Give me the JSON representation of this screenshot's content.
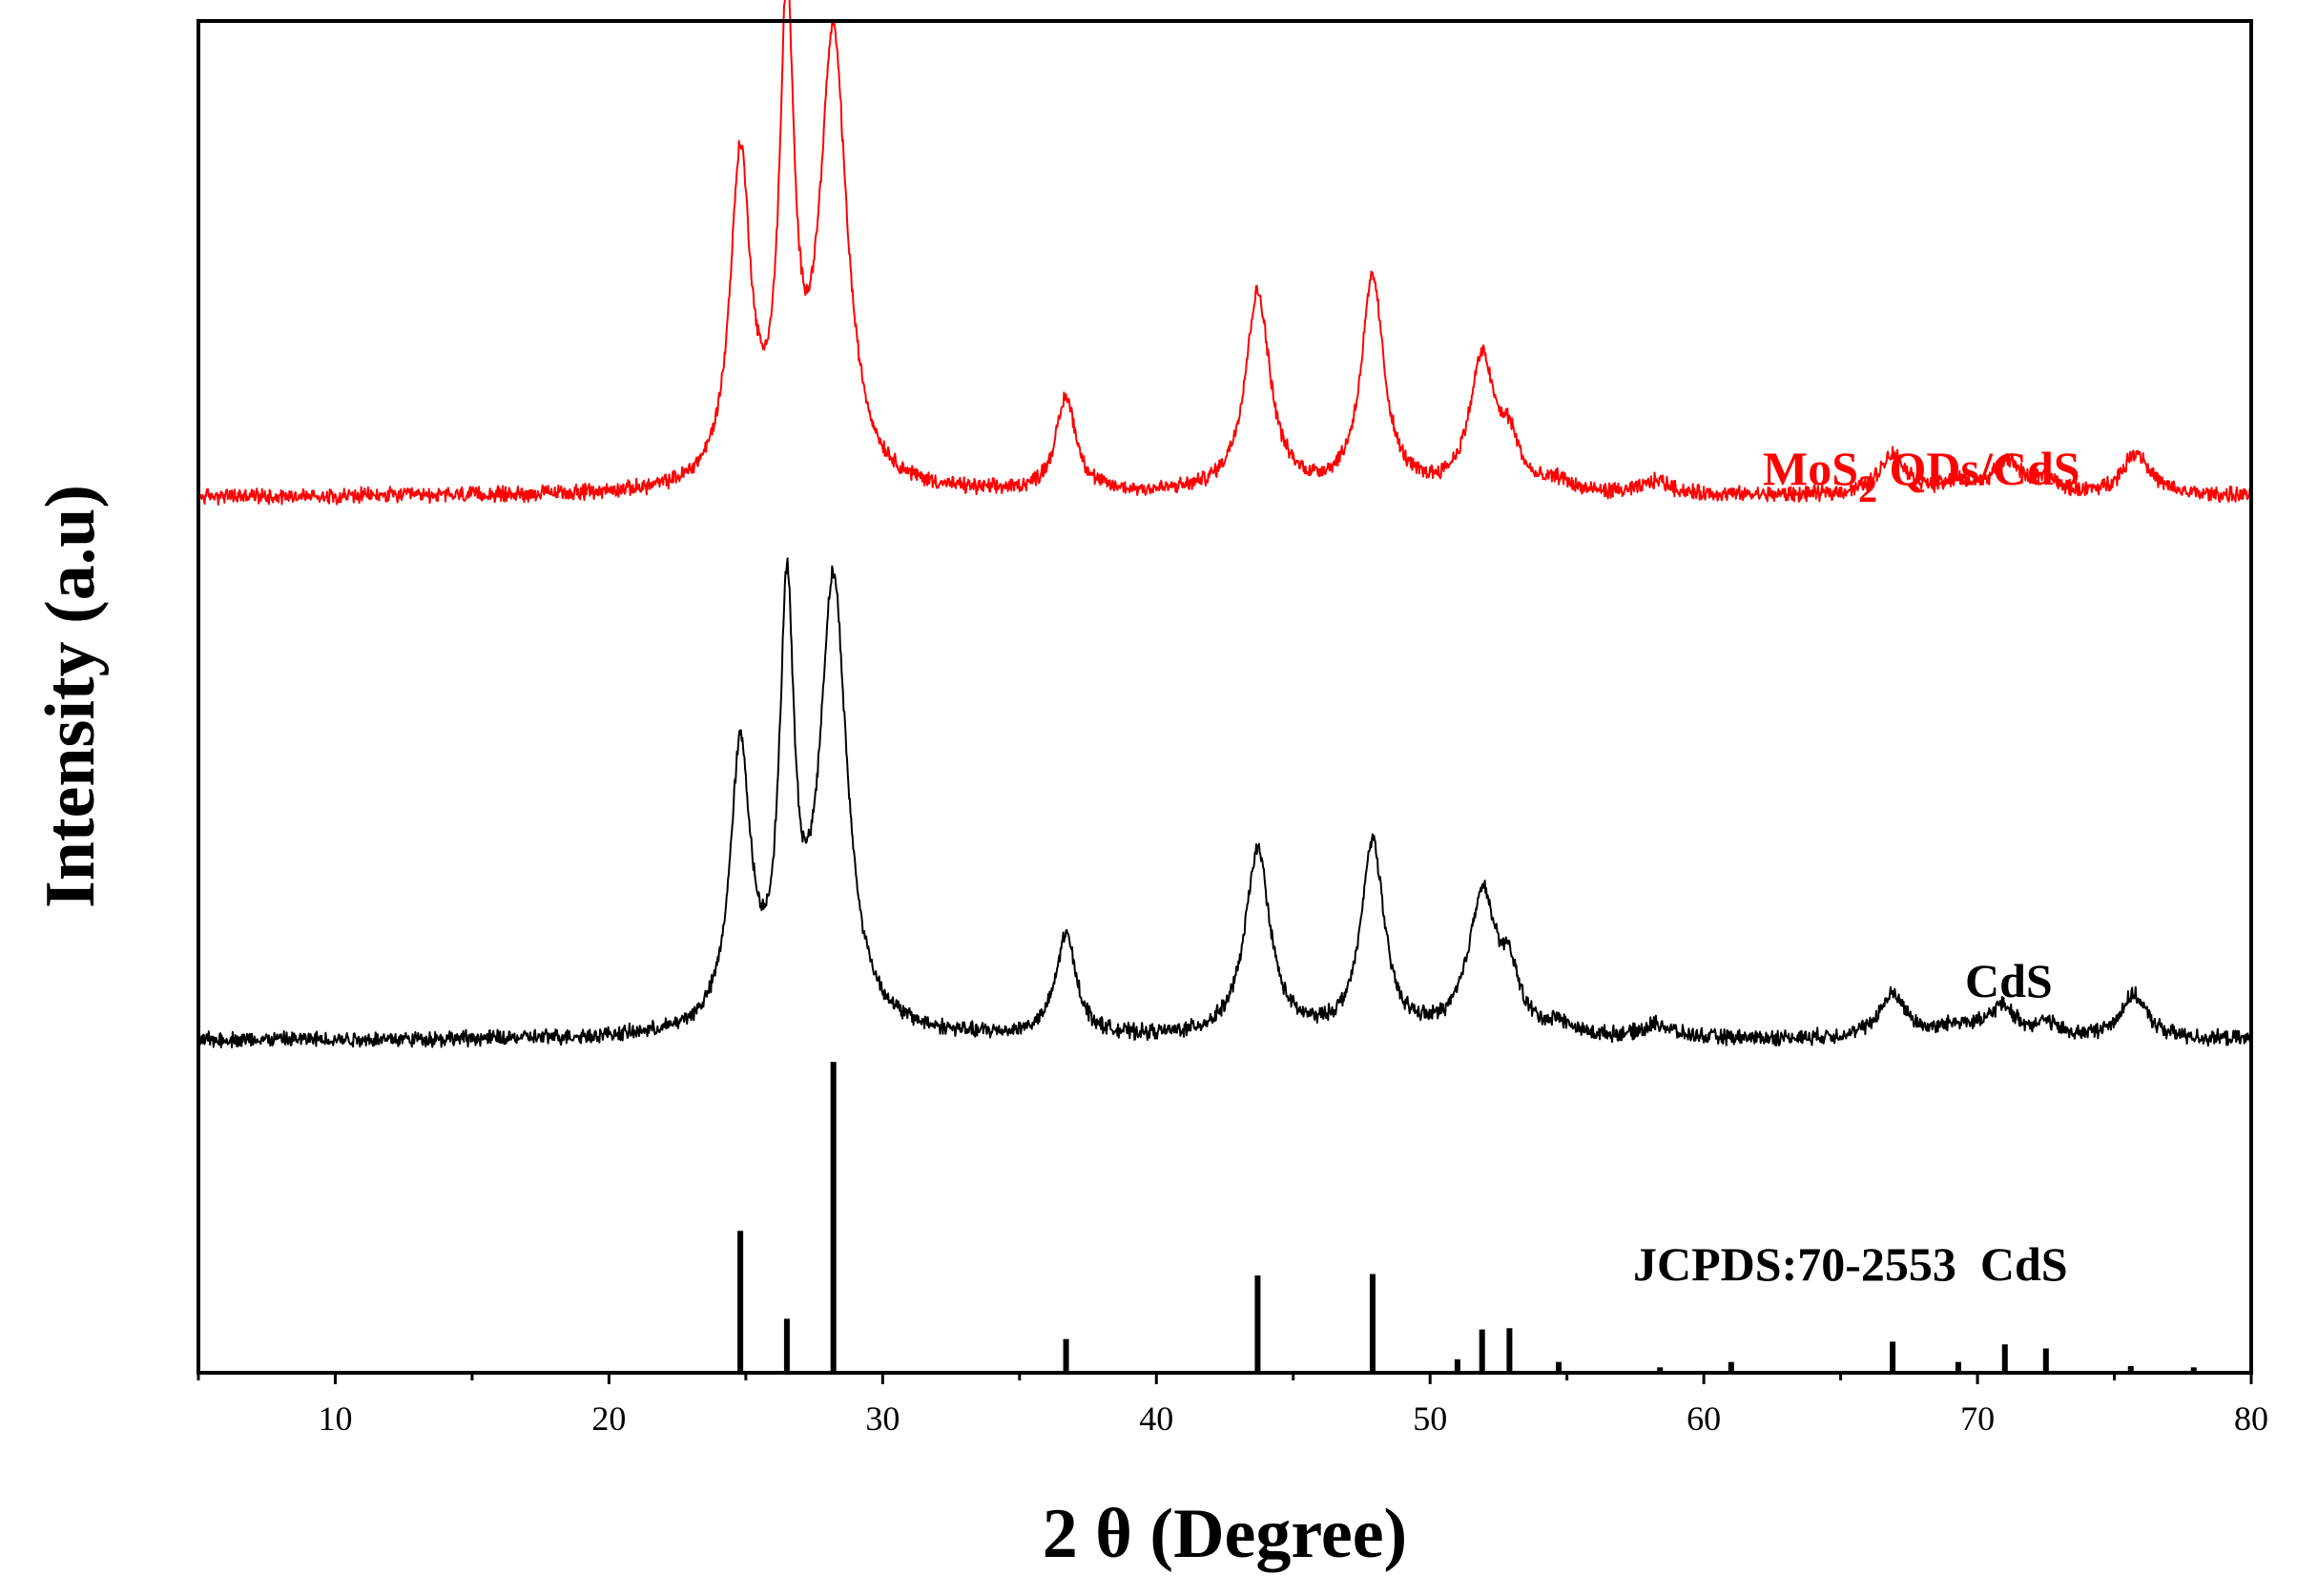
{
  "chart_data": {
    "type": "line",
    "xlabel": "2 θ (Degree)",
    "ylabel": "Intensity (a.u)",
    "xlim": [
      5,
      80
    ],
    "ylim": [
      0,
      100
    ],
    "x_ticks": [
      10,
      20,
      30,
      40,
      50,
      60,
      70,
      80
    ],
    "x_minor_step": 5,
    "series": [
      {
        "key": "mos2",
        "label_main": "MoS",
        "label_sub": "2",
        "label_rest": " QDs/CdS",
        "color": "#ff0000",
        "baseline": 64.8,
        "noise": 0.45,
        "peaks": [
          {
            "x": 24.8,
            "h": 24,
            "w": 0.45
          },
          {
            "x": 26.5,
            "h": 33.8,
            "w": 0.32
          },
          {
            "x": 28.2,
            "h": 33.2,
            "w": 0.6
          },
          {
            "x": 36.7,
            "h": 7,
            "w": 0.45
          },
          {
            "x": 43.7,
            "h": 14.8,
            "w": 0.55
          },
          {
            "x": 47.9,
            "h": 15.8,
            "w": 0.5
          },
          {
            "x": 51.9,
            "h": 9.8,
            "w": 0.55
          },
          {
            "x": 52.9,
            "h": 3.2,
            "w": 0.45
          },
          {
            "x": 54.7,
            "h": 0.8,
            "w": 0.5
          },
          {
            "x": 58.3,
            "h": 1,
            "w": 0.6
          },
          {
            "x": 66.9,
            "h": 3,
            "w": 0.6
          },
          {
            "x": 69.3,
            "h": 0.8,
            "w": 0.8
          },
          {
            "x": 71.1,
            "h": 2.4,
            "w": 0.6
          },
          {
            "x": 72.5,
            "h": 1,
            "w": 0.5
          },
          {
            "x": 75.8,
            "h": 3.2,
            "w": 0.6
          }
        ]
      },
      {
        "key": "cds",
        "label_main": "CdS",
        "label_sub": "",
        "label_rest": "",
        "color": "#000000",
        "baseline": 24.6,
        "noise": 0.45,
        "peaks": [
          {
            "x": 24.8,
            "h": 20.5,
            "w": 0.45
          },
          {
            "x": 26.5,
            "h": 30.2,
            "w": 0.32
          },
          {
            "x": 28.2,
            "h": 33.2,
            "w": 0.6
          },
          {
            "x": 36.7,
            "h": 7.5,
            "w": 0.45
          },
          {
            "x": 43.7,
            "h": 13.8,
            "w": 0.55
          },
          {
            "x": 47.9,
            "h": 14.4,
            "w": 0.5
          },
          {
            "x": 51.9,
            "h": 10.4,
            "w": 0.6
          },
          {
            "x": 52.9,
            "h": 3.8,
            "w": 0.45
          },
          {
            "x": 54.7,
            "h": 0.8,
            "w": 0.5
          },
          {
            "x": 58.3,
            "h": 1,
            "w": 0.6
          },
          {
            "x": 66.9,
            "h": 3.2,
            "w": 0.6
          },
          {
            "x": 69.3,
            "h": 0.9,
            "w": 0.8
          },
          {
            "x": 70.9,
            "h": 2.2,
            "w": 0.6
          },
          {
            "x": 72.5,
            "h": 1,
            "w": 0.5
          },
          {
            "x": 75.7,
            "h": 3.2,
            "w": 0.6
          }
        ]
      }
    ],
    "reference": {
      "label": "JCPDS:70-2553  CdS",
      "color": "#000000",
      "baseline": 0,
      "sticks": [
        {
          "x": 24.8,
          "h": 10.5
        },
        {
          "x": 26.5,
          "h": 4
        },
        {
          "x": 28.2,
          "h": 23
        },
        {
          "x": 36.7,
          "h": 2.5
        },
        {
          "x": 43.7,
          "h": 7.2
        },
        {
          "x": 47.9,
          "h": 7.3
        },
        {
          "x": 51.0,
          "h": 1
        },
        {
          "x": 51.9,
          "h": 3.2
        },
        {
          "x": 52.9,
          "h": 3.3
        },
        {
          "x": 54.7,
          "h": 0.8
        },
        {
          "x": 58.4,
          "h": 0.4
        },
        {
          "x": 61.0,
          "h": 0.8
        },
        {
          "x": 66.9,
          "h": 2.3
        },
        {
          "x": 69.3,
          "h": 0.8
        },
        {
          "x": 71.0,
          "h": 2.1
        },
        {
          "x": 72.5,
          "h": 1.8
        },
        {
          "x": 75.6,
          "h": 0.5
        },
        {
          "x": 77.9,
          "h": 0.4
        }
      ]
    }
  }
}
